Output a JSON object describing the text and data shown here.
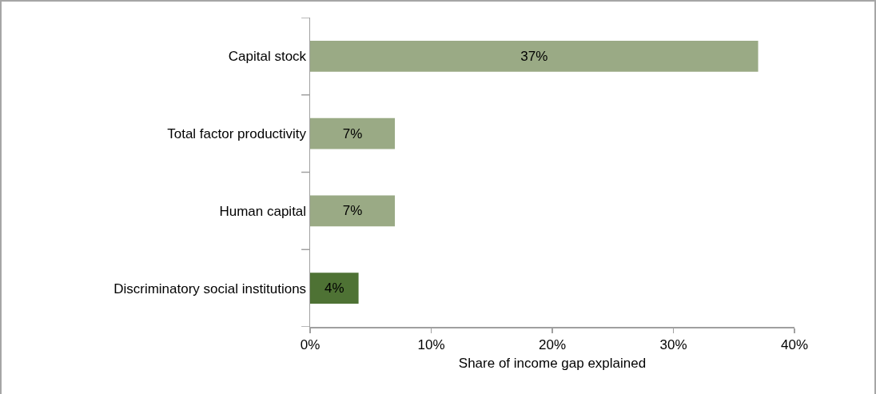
{
  "chart_data": {
    "type": "bar",
    "orientation": "horizontal",
    "categories": [
      "Capital stock",
      "Total factor productivity",
      "Human capital",
      "Discriminatory social institutions"
    ],
    "values": [
      37,
      7,
      7,
      4
    ],
    "colors": [
      "#9aaa85",
      "#9aaa85",
      "#9aaa85",
      "#4e7234"
    ],
    "value_labels": [
      "37%",
      "7%",
      "7%",
      "4%"
    ],
    "xlabel": "Share of income gap explained",
    "xlim": [
      0,
      40
    ],
    "xticks": [
      {
        "value": 0,
        "label": "0%"
      },
      {
        "value": 10,
        "label": "10%"
      },
      {
        "value": 20,
        "label": "20%"
      },
      {
        "value": 30,
        "label": "30%"
      },
      {
        "value": 40,
        "label": "40%"
      }
    ]
  }
}
